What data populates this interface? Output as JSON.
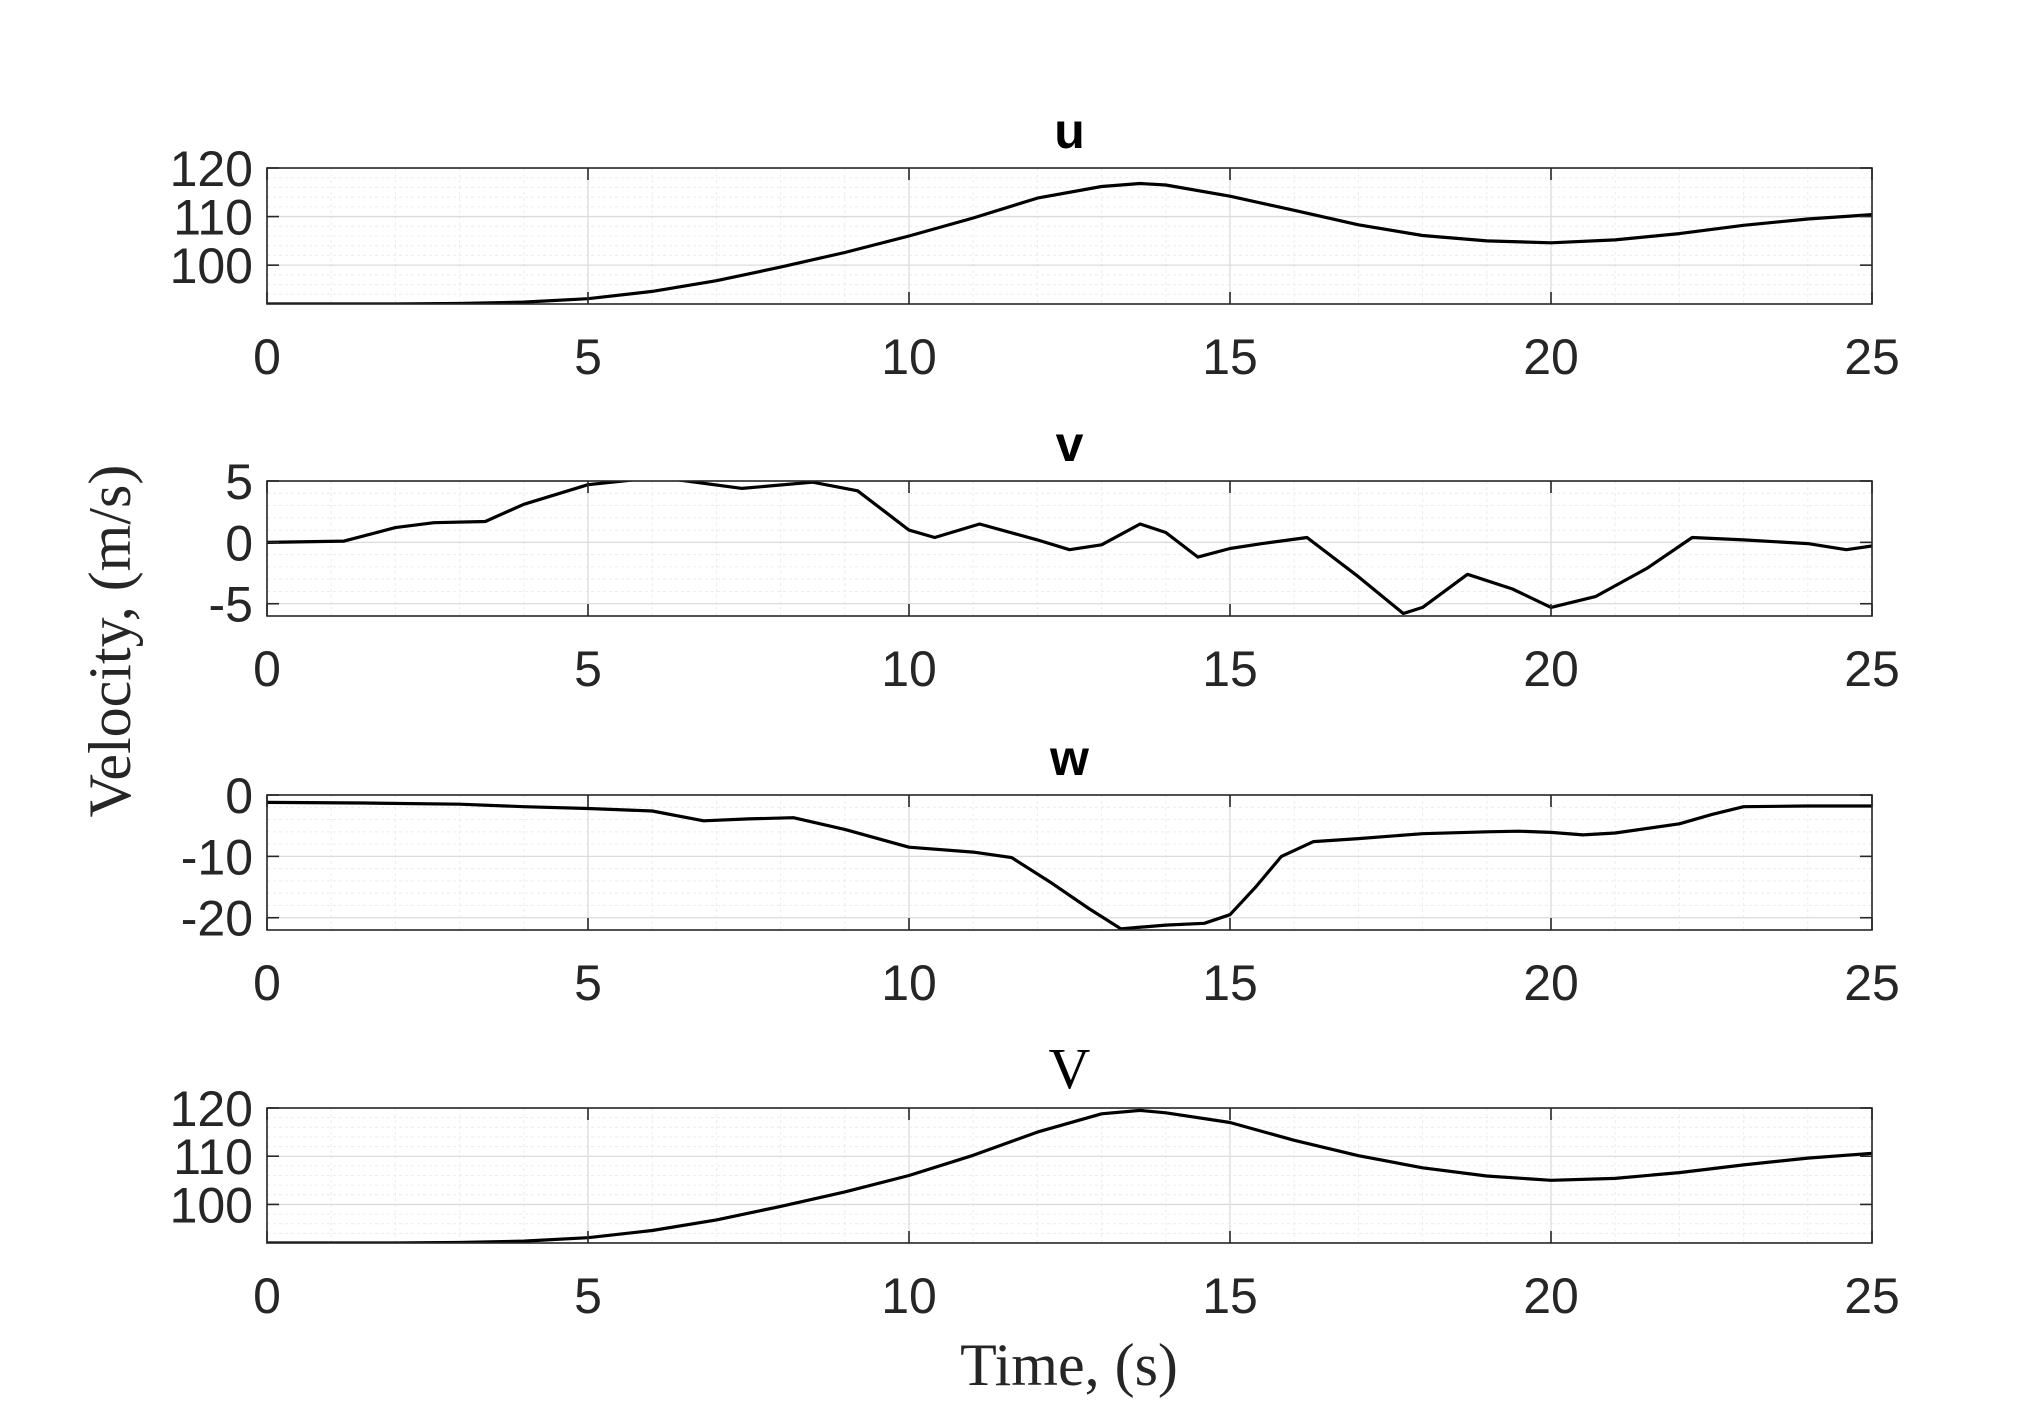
{
  "chart_data": {
    "type": "line",
    "ylabel": "Velocity, (m/s)",
    "xlabel": "Time, (s)",
    "panels": [
      {
        "title": "u",
        "title_style": "bold-sans",
        "xlim": [
          0,
          25
        ],
        "ylim": [
          92,
          120
        ],
        "xticks": [
          0,
          5,
          10,
          15,
          20,
          25
        ],
        "yticks": [
          100,
          110,
          120
        ],
        "grid": "major-and-minor",
        "series": [
          {
            "x": [
              0,
              1,
              2,
              3,
              4,
              5,
              6,
              7,
              8,
              9,
              10,
              11,
              12,
              13,
              13.6,
              14,
              15,
              16,
              17,
              18,
              19,
              20,
              21,
              22,
              23,
              24,
              25
            ],
            "y": [
              92,
              92,
              92,
              92.1,
              92.4,
              93.1,
              94.6,
              96.8,
              99.6,
              102.6,
              106,
              109.7,
              113.8,
              116.2,
              116.8,
              116.5,
              114.2,
              111.3,
              108.3,
              106.1,
              105,
              104.6,
              105.2,
              106.5,
              108.2,
              109.5,
              110.4
            ]
          }
        ]
      },
      {
        "title": "v",
        "title_style": "bold-sans",
        "xlim": [
          0,
          25
        ],
        "ylim": [
          -6,
          5
        ],
        "xticks": [
          0,
          5,
          10,
          15,
          20,
          25
        ],
        "yticks": [
          -5,
          0,
          5
        ],
        "grid": "major-and-minor",
        "series": [
          {
            "x": [
              0,
              1.2,
              2,
              2.6,
              3.4,
              4,
              5,
              6.1,
              7.4,
              8.5,
              9.2,
              10,
              10.4,
              11.1,
              12,
              12.5,
              13,
              13.6,
              14,
              14.5,
              15,
              15.5,
              16.2,
              17,
              17.7,
              18,
              18.7,
              19.4,
              20,
              20.7,
              21.5,
              22.2,
              23,
              24,
              24.6,
              25
            ],
            "y": [
              0,
              0.1,
              1.2,
              1.6,
              1.7,
              3.1,
              4.7,
              5.3,
              4.4,
              4.9,
              4.2,
              1,
              0.4,
              1.5,
              0.2,
              -0.6,
              -0.2,
              1.5,
              0.8,
              -1.2,
              -0.5,
              -0.1,
              0.4,
              -2.8,
              -5.8,
              -5.3,
              -2.6,
              -3.8,
              -5.3,
              -4.4,
              -2.1,
              0.4,
              0.2,
              -0.1,
              -0.6,
              -0.3
            ]
          }
        ]
      },
      {
        "title": "w",
        "title_style": "bold-sans",
        "xlim": [
          0,
          25
        ],
        "ylim": [
          -22,
          0
        ],
        "xticks": [
          0,
          5,
          10,
          15,
          20,
          25
        ],
        "yticks": [
          -20,
          -10,
          0
        ],
        "grid": "major-and-minor",
        "series": [
          {
            "x": [
              0,
              1.5,
              3,
              4,
              5,
              6,
              6.8,
              7.5,
              8.2,
              9,
              10,
              11,
              11.6,
              12.2,
              12.8,
              13.3,
              14,
              14.6,
              15,
              15.4,
              15.8,
              16.3,
              17,
              18,
              19,
              19.5,
              20,
              20.5,
              21,
              22,
              22.5,
              23,
              24,
              25
            ],
            "y": [
              -1.2,
              -1.3,
              -1.5,
              -1.9,
              -2.2,
              -2.6,
              -4.2,
              -3.9,
              -3.7,
              -5.6,
              -8.5,
              -9.3,
              -10.2,
              -14.2,
              -18.5,
              -21.8,
              -21.2,
              -20.9,
              -19.5,
              -15,
              -10,
              -7.6,
              -7.1,
              -6.3,
              -6,
              -5.9,
              -6.1,
              -6.5,
              -6.2,
              -4.7,
              -3.2,
              -1.9,
              -1.8,
              -1.8
            ]
          }
        ]
      },
      {
        "title": "V",
        "title_style": "serif",
        "xlim": [
          0,
          25
        ],
        "ylim": [
          92,
          120
        ],
        "xticks": [
          0,
          5,
          10,
          15,
          20,
          25
        ],
        "yticks": [
          100,
          110,
          120
        ],
        "grid": "major-and-minor",
        "series": [
          {
            "x": [
              0,
              1,
              2,
              3,
              4,
              5,
              6,
              7,
              8,
              9,
              10,
              11,
              12,
              13,
              13.6,
              14,
              15,
              16,
              17,
              18,
              19,
              20,
              21,
              22,
              23,
              24,
              25
            ],
            "y": [
              92,
              92,
              92,
              92.1,
              92.4,
              93.1,
              94.6,
              96.8,
              99.6,
              102.6,
              106,
              110.2,
              115,
              118.8,
              119.5,
              119,
              117,
              113.3,
              110.1,
              107.6,
              105.9,
              105,
              105.4,
              106.6,
              108.2,
              109.6,
              110.6
            ]
          }
        ]
      }
    ]
  }
}
